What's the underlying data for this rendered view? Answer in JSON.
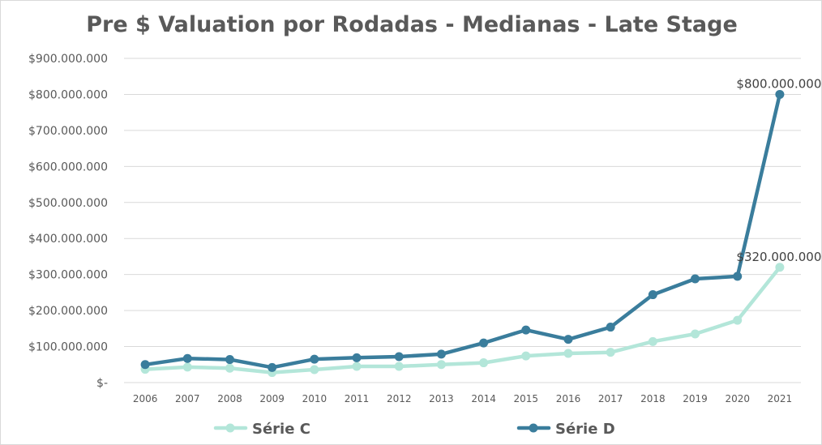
{
  "chart_data": {
    "type": "line",
    "title": "Pre $ Valuation por Rodadas - Medianas - Late Stage",
    "xlabel": "",
    "ylabel": "",
    "categories": [
      "2006",
      "2007",
      "2008",
      "2009",
      "2010",
      "2011",
      "2012",
      "2013",
      "2014",
      "2015",
      "2016",
      "2017",
      "2018",
      "2019",
      "2020",
      "2021"
    ],
    "ylim": [
      0,
      900000000
    ],
    "y_ticks": [
      0,
      100000000,
      200000000,
      300000000,
      400000000,
      500000000,
      600000000,
      700000000,
      800000000,
      900000000
    ],
    "y_tick_labels": [
      "$-",
      "$100.000.000",
      "$200.000.000",
      "$300.000.000",
      "$400.000.000",
      "$500.000.000",
      "$600.000.000",
      "$700.000.000",
      "$800.000.000",
      "$900.000.000"
    ],
    "grid": true,
    "legend_position": "bottom",
    "series": [
      {
        "name": "Série C",
        "color": "#b3e6d9",
        "values": [
          37000000,
          43000000,
          40000000,
          28000000,
          36000000,
          45000000,
          45000000,
          50000000,
          55000000,
          74000000,
          81000000,
          84000000,
          114000000,
          135000000,
          173000000,
          320000000
        ],
        "end_label": "$320.000.000"
      },
      {
        "name": "Série D",
        "color": "#3a7d9c",
        "values": [
          50000000,
          67000000,
          64000000,
          42000000,
          65000000,
          69000000,
          72000000,
          79000000,
          110000000,
          146000000,
          120000000,
          154000000,
          244000000,
          288000000,
          295000000,
          800000000
        ],
        "end_label": "$800.000.000"
      }
    ]
  }
}
